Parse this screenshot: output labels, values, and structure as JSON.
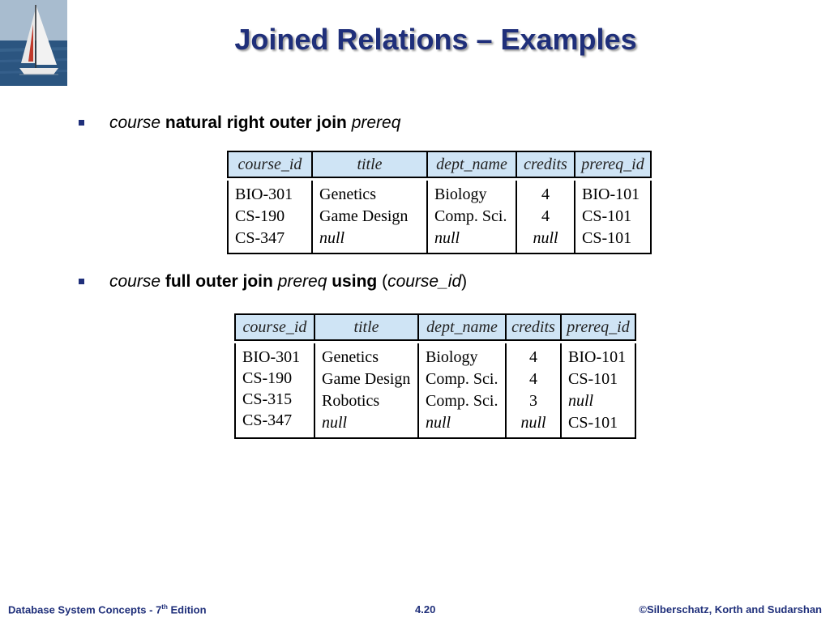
{
  "slide": {
    "title": "Joined Relations – Examples"
  },
  "bullets": [
    {
      "parts": [
        {
          "text": "course",
          "style": "italic"
        },
        {
          "text": " natural right outer join ",
          "style": "bold"
        },
        {
          "text": "prereq",
          "style": "italic"
        }
      ]
    },
    {
      "parts": [
        {
          "text": "course",
          "style": "italic"
        },
        {
          "text": " full outer join ",
          "style": "bold"
        },
        {
          "text": "prereq",
          "style": "italic"
        },
        {
          "text": " using ",
          "style": "bold"
        },
        {
          "text": "(",
          "style": "plain"
        },
        {
          "text": "course_id",
          "style": "italic"
        },
        {
          "text": ")",
          "style": "plain"
        }
      ]
    }
  ],
  "table1": {
    "headers": [
      "course_id",
      "title",
      "dept_name",
      "credits",
      "prereq_id"
    ],
    "columns": [
      [
        "BIO-301",
        "CS-190",
        "CS-347"
      ],
      [
        "Genetics",
        "Game Design",
        "null"
      ],
      [
        "Biology",
        "Comp. Sci.",
        "null"
      ],
      [
        "4",
        "4",
        "null"
      ],
      [
        "BIO-101",
        "CS-101",
        "CS-101"
      ]
    ]
  },
  "table2": {
    "headers": [
      "course_id",
      "title",
      "dept_name",
      "credits",
      "prereq_id"
    ],
    "columns": [
      [
        "BIO-301",
        "CS-190",
        "CS-315",
        "CS-347"
      ],
      [
        "Genetics",
        "Game Design",
        "Robotics",
        "null"
      ],
      [
        "Biology",
        "Comp. Sci.",
        "Comp. Sci.",
        "null"
      ],
      [
        "4",
        "4",
        "3",
        "null"
      ],
      [
        "BIO-101",
        "CS-101",
        "null",
        "CS-101"
      ]
    ]
  },
  "footer": {
    "book": "Database System Concepts - 7",
    "book_sup": "th",
    "book_suffix": " Edition",
    "page": "4.20",
    "copyright": "©Silberschatz, Korth and Sudarshan"
  },
  "colors": {
    "title": "#1f2f7a",
    "header_fill": "#cfe4f5",
    "footer": "#1f2f7a"
  },
  "icons": {
    "logo": "sailboat-logo",
    "bullet": "square-bullet-icon"
  }
}
